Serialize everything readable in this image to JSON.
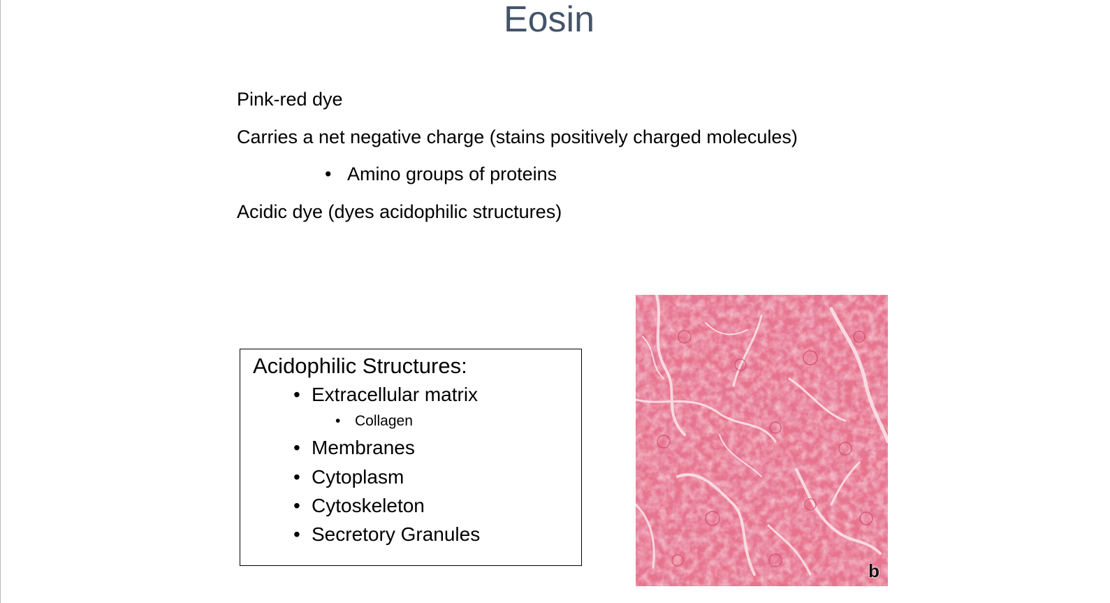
{
  "slide": {
    "title": "Eosin",
    "lines": [
      "Pink-red dye",
      "Carries a net negative charge (stains positively charged molecules)",
      "Acidic dye (dyes acidophilic structures)"
    ],
    "sub_bullet": "Amino groups of proteins",
    "bullet_glyph": "•"
  },
  "box": {
    "title": "Acidophilic Structures:",
    "items": [
      "Extracellular matrix",
      "Membranes",
      "Cytoplasm",
      "Cytoskeleton",
      "Secretory Granules"
    ],
    "sub_item": "Collagen"
  },
  "image": {
    "panel_label": "b",
    "colors": {
      "base": "#e7728c",
      "light": "#f8d3dc",
      "dark": "#c93a5c"
    }
  }
}
